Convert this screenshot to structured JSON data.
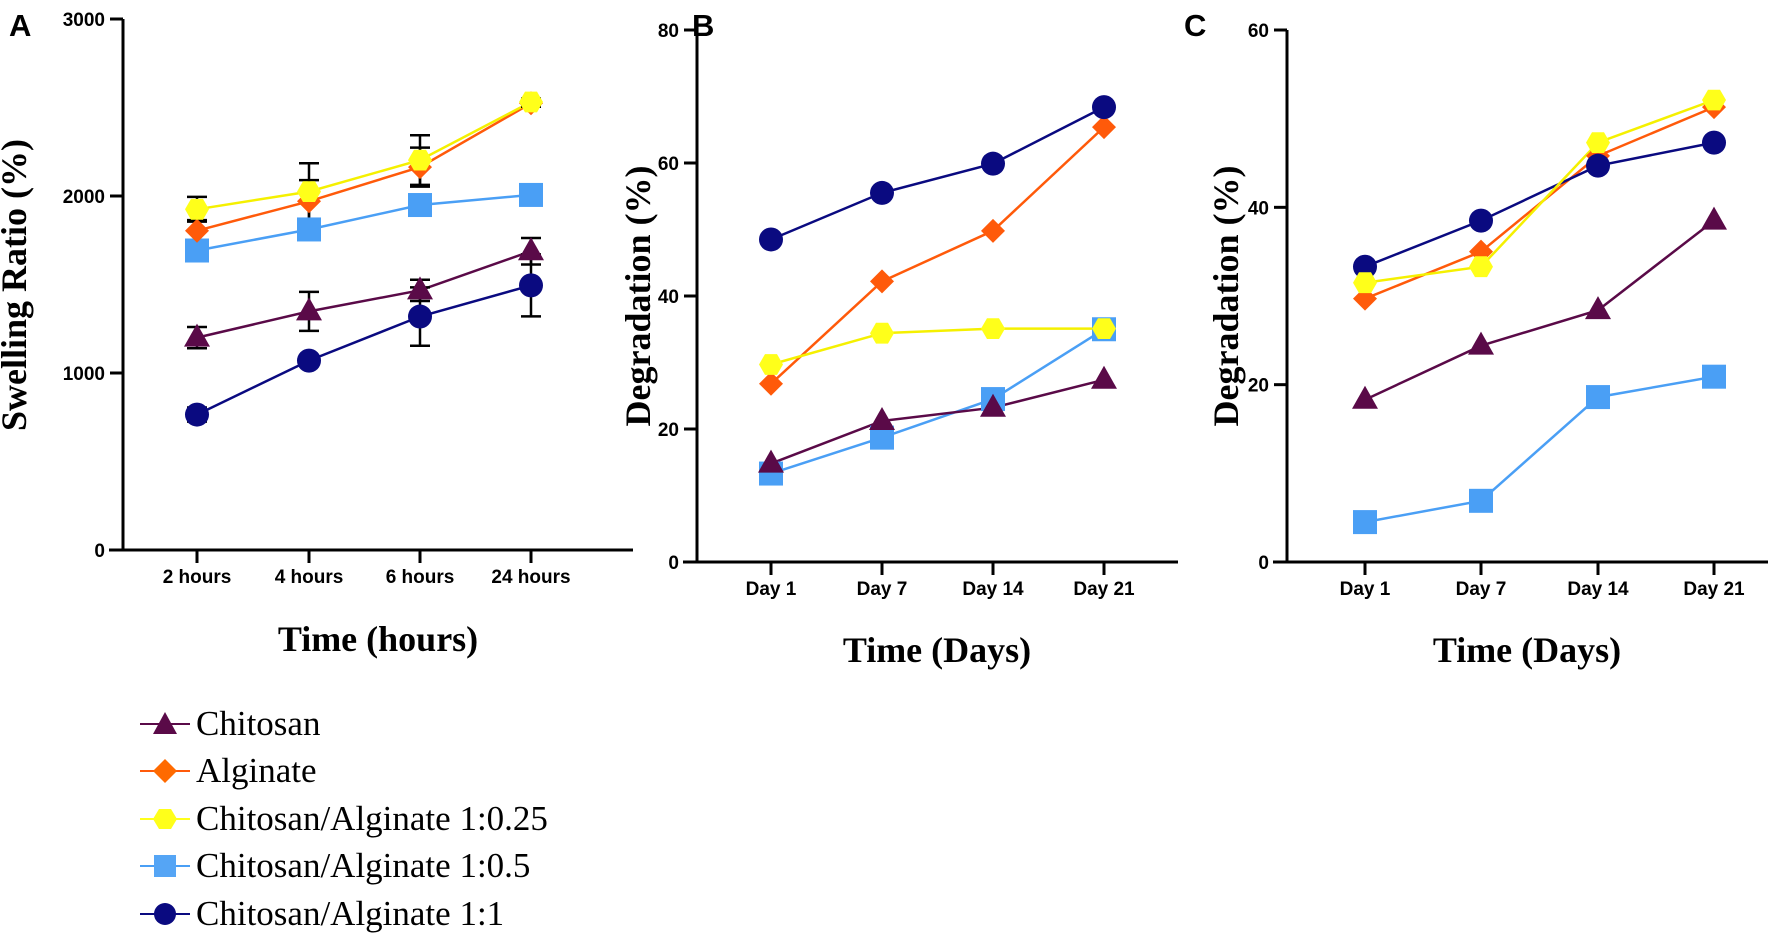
{
  "chart_data": [
    {
      "panel": "A",
      "type": "line",
      "title": "",
      "xlabel": "Time (hours)",
      "ylabel": "Swelling Ratio (%)",
      "categories": [
        "2 hours",
        "4 hours",
        "6 hours",
        "24 hours"
      ],
      "ylim": [
        0,
        3000
      ],
      "yticks": [
        "0",
        "1000",
        "2000",
        "3000"
      ],
      "yticks_values": [
        0,
        1000,
        2000,
        3000
      ],
      "grid": false,
      "series": [
        {
          "name": "Chitosan",
          "marker": "triangle",
          "color": "#5a0a48",
          "values": [
            1200,
            1348,
            1467,
            1688
          ],
          "errors": [
            60,
            110,
            60,
            75
          ]
        },
        {
          "name": "Alginate",
          "marker": "diamond",
          "color": "#ff5a0a",
          "values": [
            1804,
            1970,
            2163,
            2524
          ],
          "errors": [
            60,
            120,
            110,
            20
          ]
        },
        {
          "name": "Chitosan/Alginate 1:0.25",
          "marker": "hexagon",
          "color": "#ffff1a",
          "values": [
            1925,
            2025,
            2203,
            2531
          ],
          "errors": [
            70,
            160,
            140,
            20
          ]
        },
        {
          "name": "Chitosan/Alginate 1:0.5",
          "marker": "square",
          "color": "#4a9ff5",
          "values": [
            1692,
            1811,
            1949,
            2006
          ],
          "errors": [
            20,
            45,
            20,
            20
          ]
        },
        {
          "name": "Chitosan/Alginate 1:1",
          "marker": "circle",
          "color": "#0a0a80",
          "values": [
            765,
            1070,
            1319,
            1495
          ],
          "errors": [
            40,
            25,
            165,
            175
          ]
        }
      ]
    },
    {
      "panel": "B",
      "type": "line",
      "title": "",
      "xlabel": "Time (Days)",
      "ylabel": "Degradation (%)",
      "categories": [
        "Day 1",
        "Day 7",
        "Day 14",
        "Day 21"
      ],
      "ylim": [
        0,
        80
      ],
      "yticks": [
        "0",
        "20",
        "40",
        "60",
        "80"
      ],
      "yticks_values": [
        0,
        20,
        40,
        60,
        80
      ],
      "grid": false,
      "series": [
        {
          "name": "Chitosan",
          "marker": "triangle",
          "color": "#5a0a48",
          "values": [
            14.8,
            21.2,
            23.2,
            27.4
          ]
        },
        {
          "name": "Alginate",
          "marker": "diamond",
          "color": "#ff5a0a",
          "values": [
            26.8,
            42.2,
            49.8,
            65.4
          ]
        },
        {
          "name": "Chitosan/Alginate 1:0.25",
          "marker": "hexagon",
          "color": "#ffff1a",
          "values": [
            29.7,
            34.4,
            35.1,
            35.1
          ]
        },
        {
          "name": "Chitosan/Alginate 1:0.5",
          "marker": "square",
          "color": "#4a9ff5",
          "values": [
            13.3,
            18.7,
            24.5,
            35.0
          ]
        },
        {
          "name": "Chitosan/Alginate 1:1",
          "marker": "circle",
          "color": "#0a0a80",
          "values": [
            48.5,
            55.5,
            59.9,
            68.4
          ]
        }
      ]
    },
    {
      "panel": "C",
      "type": "line",
      "title": "",
      "xlabel": "Time (Days)",
      "ylabel": "Degradation (%)",
      "categories": [
        "Day 1",
        "Day 7",
        "Day 14",
        "Day 21"
      ],
      "ylim": [
        0,
        60
      ],
      "yticks": [
        "0",
        "20",
        "40",
        "60"
      ],
      "yticks_values": [
        0,
        20,
        40,
        60
      ],
      "grid": false,
      "series": [
        {
          "name": "Chitosan",
          "marker": "triangle",
          "color": "#5a0a48",
          "values": [
            18.3,
            24.4,
            28.4,
            38.5
          ]
        },
        {
          "name": "Alginate",
          "marker": "diamond",
          "color": "#ff5a0a",
          "values": [
            29.7,
            35.0,
            45.8,
            51.3
          ]
        },
        {
          "name": "Chitosan/Alginate 1:0.25",
          "marker": "hexagon",
          "color": "#ffff1a",
          "values": [
            31.5,
            33.3,
            47.3,
            52.1
          ]
        },
        {
          "name": "Chitosan/Alginate 1:0.5",
          "marker": "square",
          "color": "#4a9ff5",
          "values": [
            4.5,
            6.9,
            18.6,
            20.9
          ]
        },
        {
          "name": "Chitosan/Alginate 1:1",
          "marker": "circle",
          "color": "#0a0a80",
          "values": [
            33.3,
            38.5,
            44.7,
            47.3
          ]
        }
      ]
    }
  ],
  "legend": {
    "placement": "bottom-left"
  }
}
